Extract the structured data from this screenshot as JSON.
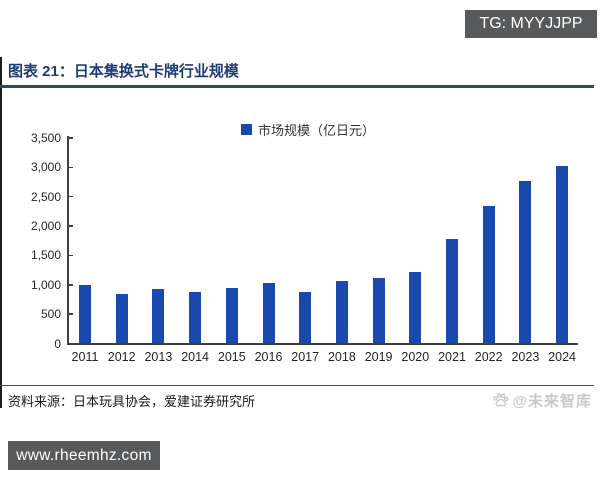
{
  "badges": {
    "tg": "TG: MYYJJPP",
    "website": "www.rheemhz.com"
  },
  "header": {
    "title": "图表 21：日本集换式卡牌行业规模"
  },
  "chart_data": {
    "type": "bar",
    "title": "日本集换式卡牌行业规模",
    "legend": [
      "市场规模（亿日元）"
    ],
    "legend_position": "top",
    "categories": [
      "2011",
      "2012",
      "2013",
      "2014",
      "2015",
      "2016",
      "2017",
      "2018",
      "2019",
      "2020",
      "2021",
      "2022",
      "2023",
      "2024"
    ],
    "values": [
      1000,
      850,
      930,
      870,
      950,
      1030,
      880,
      1060,
      1110,
      1220,
      1780,
      2350,
      2770,
      3020
    ],
    "xlabel": "",
    "ylabel": "",
    "ylim": [
      0,
      3500
    ],
    "ytick_step": 500,
    "grid": false,
    "bar_color": "#1a49ae"
  },
  "footer": {
    "source": "资料来源：日本玩具协会，爱建证券研究所",
    "watermark": "@未来智库",
    "watermark_icon": "paw-icon"
  },
  "colors": {
    "title_blue": "#1f3c78",
    "bar_blue": "#1a49ae",
    "badge_gray": "#58595b",
    "axis_dark": "#404040",
    "watermark_gray": "#c9c9c9"
  }
}
